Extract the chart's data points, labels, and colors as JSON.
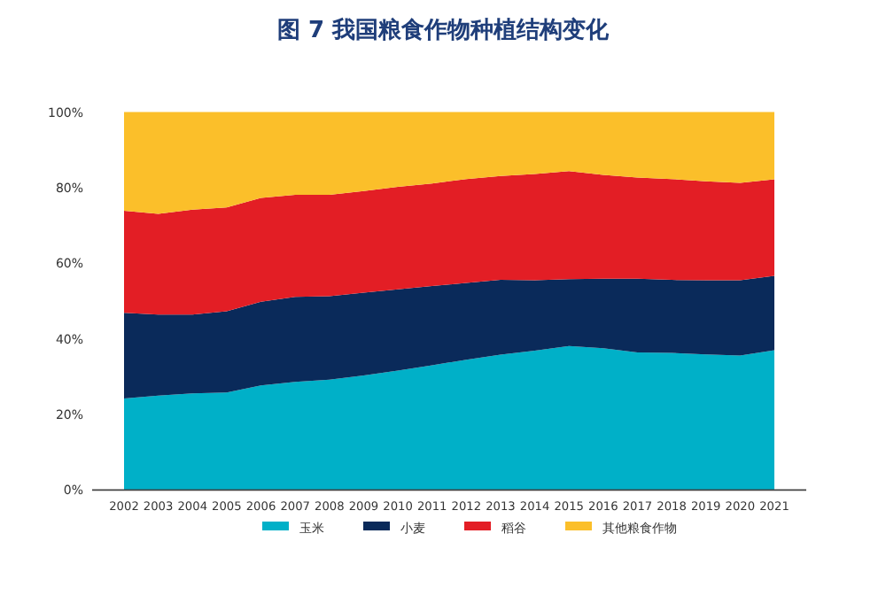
{
  "chart_data": {
    "type": "area",
    "title": "图 7 我国粮食作物种植结构变化",
    "stacked": true,
    "legend": "bottom",
    "categories": [
      "2002",
      "2003",
      "2004",
      "2005",
      "2006",
      "2007",
      "2008",
      "2009",
      "2010",
      "2011",
      "2012",
      "2013",
      "2014",
      "2015",
      "2016",
      "2017",
      "2018",
      "2019",
      "2020",
      "2021"
    ],
    "ylim": [
      0,
      100
    ],
    "yticks": [
      {
        "value": 0,
        "label": "0%"
      },
      {
        "value": 20,
        "label": "20%"
      },
      {
        "value": 40,
        "label": "40%"
      },
      {
        "value": 60,
        "label": "60%"
      },
      {
        "value": 80,
        "label": "80%"
      },
      {
        "value": 100,
        "label": "100%"
      }
    ],
    "series": [
      {
        "name": "玉米",
        "color": "#00b0c8",
        "values": [
          24.2,
          25,
          25.6,
          25.8,
          27.7,
          28.6,
          29.2,
          30.3,
          31.6,
          33,
          34.5,
          35.8,
          36.9,
          38.1,
          37.5,
          36.4,
          36.3,
          35.9,
          35.6,
          37
        ]
      },
      {
        "name": "小麦",
        "color": "#0a2a5a",
        "values": [
          22.7,
          21.4,
          20.8,
          21.5,
          22.1,
          22.5,
          22.1,
          21.9,
          21.5,
          21,
          20.3,
          19.8,
          18.6,
          17.7,
          18.4,
          19.5,
          19.3,
          19.6,
          19.9,
          19.7
        ]
      },
      {
        "name": "稻谷",
        "color": "#e31e25",
        "values": [
          27,
          26.7,
          27.8,
          27.5,
          27.5,
          27,
          26.8,
          26.9,
          27.1,
          27.1,
          27.5,
          27.5,
          28.1,
          28.6,
          27.5,
          26.8,
          26.7,
          26.2,
          25.8,
          25.5
        ]
      },
      {
        "name": "其他粮食作物",
        "color": "#fbbf2a",
        "values": [
          26.1,
          26.9,
          25.8,
          25.2,
          22.7,
          21.9,
          21.9,
          20.9,
          19.8,
          18.9,
          17.7,
          16.9,
          16.4,
          15.6,
          16.6,
          17.3,
          17.7,
          18.3,
          18.7,
          17.8
        ]
      }
    ]
  }
}
